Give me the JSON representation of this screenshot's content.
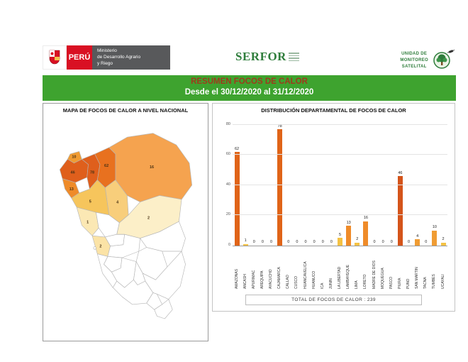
{
  "header": {
    "peru_label": "PERÚ",
    "ministry_lines": [
      "Ministerio",
      "de Desarrollo Agrario",
      "y Riego"
    ],
    "serfor_label": "SERFOR",
    "monitoring_unit_lines": [
      "UNIDAD DE",
      "MONITOREO",
      "SATELITAL"
    ]
  },
  "banner": {
    "title": "RESUMEN FOCOS DE CALOR",
    "subtitle": "Desde el 30/12/2020 al 31/12/2020",
    "background_color": "#3EA32F",
    "title_color": "#9E3B1C",
    "subtitle_color": "#FFFFFF"
  },
  "map_panel": {
    "title": "MAPA DE FOCOS DE CALOR A NIVEL NACIONAL"
  },
  "chart_panel": {
    "title": "DISTRIBUCIÓN DEPARTAMENTAL DE FOCOS DE CALOR",
    "total_label": "TOTAL DE FOCOS DE CALOR : 239"
  },
  "chart_data": {
    "type": "bar",
    "title": "DISTRIBUCIÓN DEPARTAMENTAL DE FOCOS DE CALOR",
    "categories": [
      "AMAZONAS",
      "ANCASH",
      "APURIMAC",
      "AREQUIPA",
      "AYACUCHO",
      "CAJAMARCA",
      "CALLAO",
      "CUSCO",
      "HUANCAVELICA",
      "HUANUCO",
      "ICA",
      "JUNIN",
      "LA LIBERTAD",
      "LAMBAYEQUE",
      "LIMA",
      "LORETO",
      "MADRE DE DIOS",
      "MOQUEGUA",
      "PASCO",
      "PIURA",
      "PUNO",
      "SAN MARTIN",
      "TACNA",
      "TUMBES",
      "UCAYALI"
    ],
    "values": [
      62,
      1,
      0,
      0,
      0,
      78,
      0,
      0,
      0,
      0,
      0,
      0,
      5,
      13,
      2,
      16,
      0,
      0,
      0,
      46,
      0,
      4,
      0,
      10,
      2
    ],
    "bar_colors": [
      "#E06418",
      "#F4C244",
      "#F4C244",
      "#F4C244",
      "#F4C244",
      "#E06418",
      "#F4C244",
      "#F4C244",
      "#F4C244",
      "#F4C244",
      "#F4C244",
      "#F4C244",
      "#F4C244",
      "#EF8B29",
      "#F4C244",
      "#EF8B29",
      "#F4C244",
      "#F4C244",
      "#F4C244",
      "#D4541A",
      "#F4C244",
      "#F09C33",
      "#F4C244",
      "#F09C33",
      "#F4C244"
    ],
    "xlabel": "",
    "ylabel": "",
    "ylim": [
      0,
      80
    ],
    "yticks": [
      0,
      20,
      40,
      60,
      80
    ],
    "grid": true,
    "legend": false,
    "total": 239
  },
  "map_data": {
    "regions": [
      {
        "id": "tumbes",
        "name": "TUMBES",
        "value": 10,
        "color": "#F09C33"
      },
      {
        "id": "piura",
        "name": "PIURA",
        "value": 46,
        "color": "#DF5F1C"
      },
      {
        "id": "lambayeque",
        "name": "LAMBAYEQUE",
        "value": 13,
        "color": "#EF8B29"
      },
      {
        "id": "cajamarca",
        "name": "CAJAMARCA",
        "value": 78,
        "color": "#DF5F1C"
      },
      {
        "id": "amazonas",
        "name": "AMAZONAS",
        "value": 62,
        "color": "#E8711F"
      },
      {
        "id": "loreto",
        "name": "LORETO",
        "value": 16,
        "color": "#F5A34F"
      },
      {
        "id": "sanmartin",
        "name": "SAN MARTIN",
        "value": 4,
        "color": "#F8CE7B"
      },
      {
        "id": "lalibertad",
        "name": "LA LIBERTAD",
        "value": 5,
        "color": "#F6C55C"
      },
      {
        "id": "ancash",
        "name": "ANCASH",
        "value": 1,
        "color": "#FBE8B4"
      },
      {
        "id": "huanuco",
        "name": "HUANUCO",
        "value": 0,
        "color": "#FFFFFF"
      },
      {
        "id": "ucayali",
        "name": "UCAYALI",
        "value": 2,
        "color": "#FCEFC8"
      },
      {
        "id": "pasco",
        "name": "PASCO",
        "value": 0,
        "color": "#FFFFFF"
      },
      {
        "id": "lima",
        "name": "LIMA",
        "value": 2,
        "color": "#FBE3A6"
      },
      {
        "id": "callao",
        "name": "CALLAO",
        "value": 0,
        "color": "#FFFFFF"
      },
      {
        "id": "junin",
        "name": "JUNIN",
        "value": 0,
        "color": "#FFFFFF"
      },
      {
        "id": "madrededios",
        "name": "MADRE DE DIOS",
        "value": 0,
        "color": "#FFFFFF"
      },
      {
        "id": "cusco",
        "name": "CUSCO",
        "value": 0,
        "color": "#FFFFFF"
      },
      {
        "id": "huancavelica",
        "name": "HUANCAVELICA",
        "value": 0,
        "color": "#FFFFFF"
      },
      {
        "id": "ayacucho",
        "name": "AYACUCHO",
        "value": 0,
        "color": "#FFFFFF"
      },
      {
        "id": "apurimac",
        "name": "APURIMAC",
        "value": 0,
        "color": "#FFFFFF"
      },
      {
        "id": "ica",
        "name": "ICA",
        "value": 0,
        "color": "#FFFFFF"
      },
      {
        "id": "arequipa",
        "name": "AREQUIPA",
        "value": 0,
        "color": "#FFFFFF"
      },
      {
        "id": "puno",
        "name": "PUNO",
        "value": 0,
        "color": "#FFFFFF"
      },
      {
        "id": "moquegua",
        "name": "MOQUEGUA",
        "value": 0,
        "color": "#FFFFFF"
      },
      {
        "id": "tacna",
        "name": "TACNA",
        "value": 0,
        "color": "#FFFFFF"
      }
    ]
  }
}
